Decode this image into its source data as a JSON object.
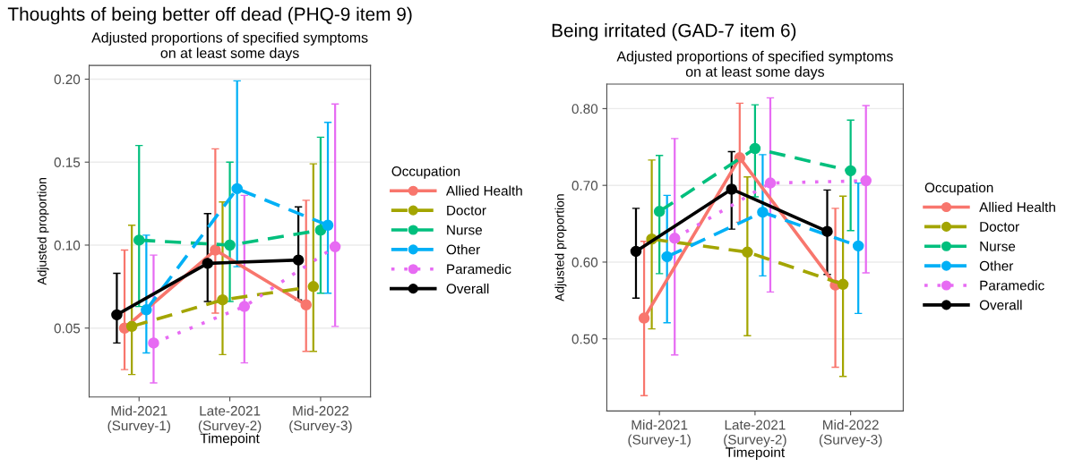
{
  "chart_data": [
    {
      "type": "line",
      "title": "Thoughts of being better off dead (PHQ-9 item 9)",
      "subtitle": "Adjusted proportions of specified symptoms\non at least some days",
      "xlabel": "Timepoint",
      "ylabel": "Adjusted proportion",
      "legend_title": "Occupation",
      "legend": "right",
      "grid": "y",
      "marker": "circle",
      "categories": [
        "Mid-2021\n(Survey-1)",
        "Late-2021\n(Survey-2)",
        "Mid-2022\n(Survey-3)"
      ],
      "ylim": [
        0.0085,
        0.2083
      ],
      "yticks": [
        {
          "value": 0.05,
          "label": "0.05"
        },
        {
          "value": 0.1,
          "label": "0.10"
        },
        {
          "value": 0.15,
          "label": "0.15"
        },
        {
          "value": 0.2,
          "label": "0.20"
        }
      ],
      "series": [
        {
          "name": "Allied Health",
          "color": "#f8766d",
          "line_style": "solid",
          "values": [
            0.05,
            0.097,
            0.064
          ],
          "errors": [
            [
              0.025,
              0.097
            ],
            [
              0.059,
              0.158
            ],
            [
              0.036,
              0.127
            ]
          ]
        },
        {
          "name": "Doctor",
          "color": "#a3a500",
          "line_style": "dashed",
          "values": [
            0.051,
            0.067,
            0.075
          ],
          "errors": [
            [
              0.022,
              0.112
            ],
            [
              0.034,
              0.126
            ],
            [
              0.036,
              0.149
            ]
          ]
        },
        {
          "name": "Nurse",
          "color": "#00bf7d",
          "line_style": "dashed",
          "values": [
            0.103,
            0.1,
            0.109
          ],
          "errors": [
            [
              0.063,
              0.16
            ],
            [
              0.066,
              0.15
            ],
            [
              0.071,
              0.165
            ]
          ]
        },
        {
          "name": "Other",
          "color": "#00b0f6",
          "line_style": "dashed",
          "values": [
            0.061,
            0.134,
            0.112
          ],
          "errors": [
            [
              0.035,
              0.106
            ],
            [
              0.087,
              0.199
            ],
            [
              0.071,
              0.174
            ]
          ]
        },
        {
          "name": "Paramedic",
          "color": "#e76bf3",
          "line_style": "dotted",
          "values": [
            0.041,
            0.063,
            0.099
          ],
          "errors": [
            [
              0.017,
              0.094
            ],
            [
              0.029,
              0.13
            ],
            [
              0.051,
              0.185
            ]
          ]
        },
        {
          "name": "Overall",
          "color": "#000000",
          "line_style": "solid",
          "values": [
            0.058,
            0.089,
            0.091
          ],
          "errors": [
            [
              0.041,
              0.083
            ],
            [
              0.066,
              0.119
            ],
            [
              0.067,
              0.123
            ]
          ]
        }
      ]
    },
    {
      "type": "line",
      "title": "Being irritated (GAD-7 item 6)",
      "subtitle": "Adjusted proportions of specified symptoms\non at least some days",
      "xlabel": "Timepoint",
      "ylabel": "Adjusted proportion",
      "legend_title": "Occupation",
      "legend": "right",
      "grid": "y",
      "marker": "circle",
      "categories": [
        "Mid-2021\n(Survey-1)",
        "Late-2021\n(Survey-2)",
        "Mid-2022\n(Survey-3)"
      ],
      "ylim": [
        0.406,
        0.832
      ],
      "yticks": [
        {
          "value": 0.5,
          "label": "0.50"
        },
        {
          "value": 0.6,
          "label": "0.60"
        },
        {
          "value": 0.7,
          "label": "0.70"
        },
        {
          "value": 0.8,
          "label": "0.80"
        }
      ],
      "series": [
        {
          "name": "Allied Health",
          "color": "#f8766d",
          "line_style": "solid",
          "values": [
            0.527,
            0.736,
            0.57
          ],
          "errors": [
            [
              0.426,
              0.627
            ],
            [
              0.652,
              0.807
            ],
            [
              0.463,
              0.67
            ]
          ]
        },
        {
          "name": "Doctor",
          "color": "#a3a500",
          "line_style": "dashed",
          "values": [
            0.63,
            0.613,
            0.571
          ],
          "errors": [
            [
              0.513,
              0.733
            ],
            [
              0.504,
              0.711
            ],
            [
              0.451,
              0.686
            ]
          ]
        },
        {
          "name": "Nurse",
          "color": "#00bf7d",
          "line_style": "dashed",
          "values": [
            0.666,
            0.748,
            0.719
          ],
          "errors": [
            [
              0.585,
              0.739
            ],
            [
              0.685,
              0.805
            ],
            [
              0.641,
              0.785
            ]
          ]
        },
        {
          "name": "Other",
          "color": "#00b0f6",
          "line_style": "dashed",
          "values": [
            0.607,
            0.665,
            0.621
          ],
          "errors": [
            [
              0.521,
              0.687
            ],
            [
              0.582,
              0.74
            ],
            [
              0.533,
              0.703
            ]
          ]
        },
        {
          "name": "Paramedic",
          "color": "#e76bf3",
          "line_style": "dotted",
          "values": [
            0.631,
            0.703,
            0.706
          ],
          "errors": [
            [
              0.479,
              0.761
            ],
            [
              0.561,
              0.814
            ],
            [
              0.586,
              0.804
            ]
          ]
        },
        {
          "name": "Overall",
          "color": "#000000",
          "line_style": "solid",
          "values": [
            0.614,
            0.695,
            0.64
          ],
          "errors": [
            [
              0.553,
              0.67
            ],
            [
              0.643,
              0.744
            ],
            [
              0.584,
              0.694
            ]
          ]
        }
      ]
    }
  ]
}
